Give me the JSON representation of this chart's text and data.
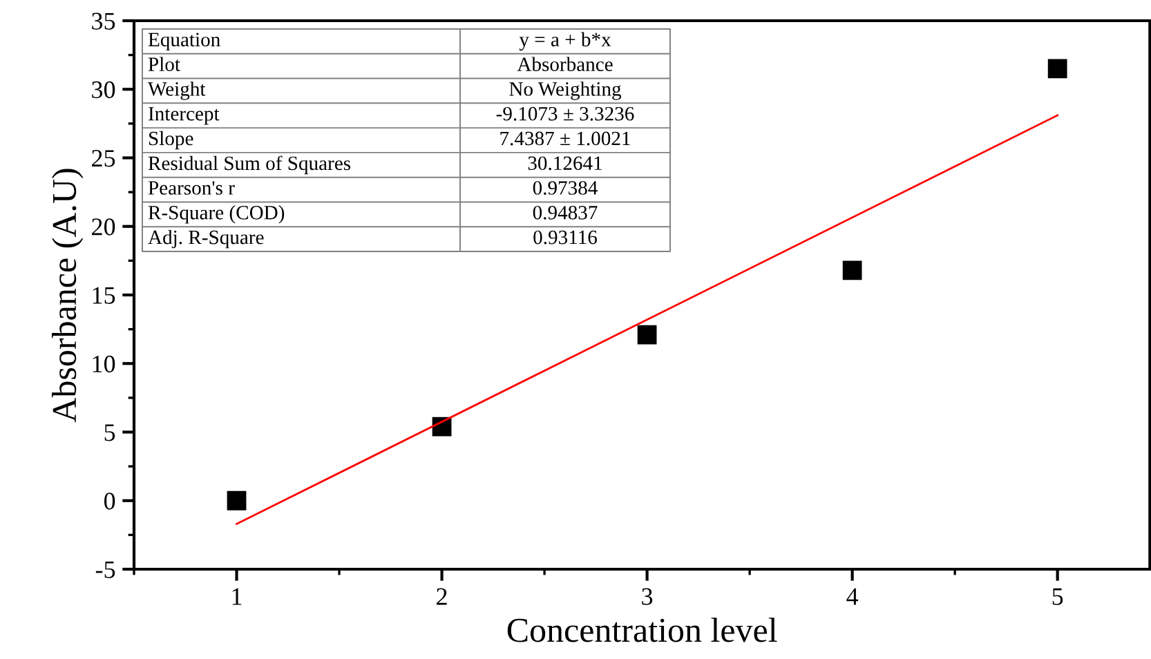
{
  "chart_data": {
    "type": "scatter",
    "xlabel": "Concentration level",
    "ylabel": "Absorbance (A.U)",
    "x": [
      1,
      2,
      3,
      4,
      5
    ],
    "series": [
      {
        "color": "#000000",
        "marker": "square",
        "values": [
          0,
          5.4,
          12.1,
          16.8,
          31.5
        ]
      },
      {
        "type": "line",
        "color": "#ff0000",
        "x": [
          1,
          5
        ],
        "values": [
          -1.7,
          28.1
        ]
      }
    ],
    "xlim": [
      0.5,
      5.45
    ],
    "xticks": [
      1,
      2,
      3,
      4,
      5
    ],
    "ylim": [
      -5,
      35
    ],
    "yticks": [
      -5,
      0,
      5,
      10,
      15,
      20,
      25,
      30,
      35
    ],
    "grid": false,
    "legend": false,
    "annotations": [
      "Equation",
      "y = a + b*x",
      "Plot",
      "Absorbance",
      "Weight",
      "No Weighting",
      "Intercept",
      "-9.1073 ± 3.3236",
      "Slope",
      "7.4387 ± 1.0021",
      "Residual Sum of Squares",
      "30.12641",
      "Pearson's r",
      "0.97384",
      "R-Square (COD)",
      "0.94837",
      "Adj. R-Square",
      "0.93116"
    ]
  }
}
